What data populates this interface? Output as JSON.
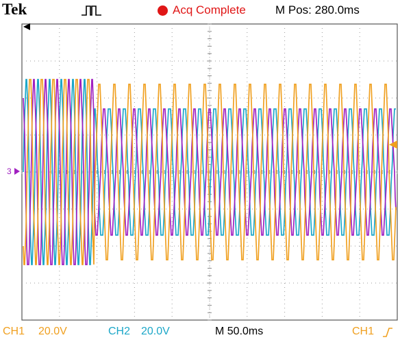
{
  "header": {
    "brand": "Tek",
    "trigger_icon": "pulse-trigger-icon",
    "acq_status": "Acq Complete",
    "m_pos": "M Pos: 280.0ms"
  },
  "markers": {
    "ground_ch": "3",
    "trigger_pos_icon": "arrow-left-icon",
    "trigger_level_icon": "arrow-left-icon"
  },
  "channels": [
    {
      "label": "CH1",
      "scale": "20.0V",
      "color": "#f0a020"
    },
    {
      "label": "CH2",
      "scale": "20.0V",
      "color": "#1ca7c8"
    }
  ],
  "timebase": "M 50.0ms",
  "trigger": {
    "source": "CH1",
    "slope_icon": "rising-edge-icon"
  },
  "colors": {
    "ch1": "#f0a020",
    "ch2": "#1ca7c8",
    "ch3": "#a020c0",
    "acq": "#e01616"
  }
}
